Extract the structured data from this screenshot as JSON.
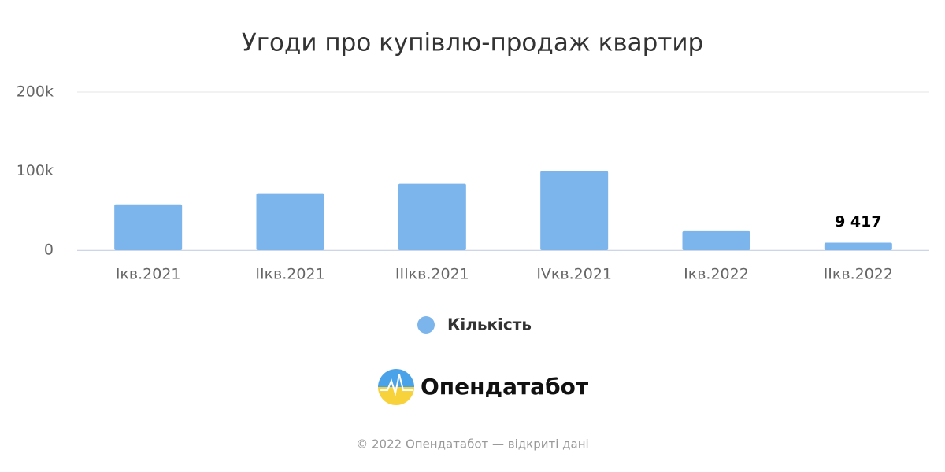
{
  "chart_data": {
    "type": "bar",
    "title": "Угоди про купівлю-продаж квартир",
    "categories": [
      "Iкв.2021",
      "IIкв.2021",
      "IIIкв.2021",
      "IVкв.2021",
      "Iкв.2022",
      "IIкв.2022"
    ],
    "series": [
      {
        "name": "Кількість",
        "color": "#7cb5ec",
        "values": [
          58000,
          72000,
          84000,
          100000,
          24000,
          9417
        ],
        "value_labels": [
          null,
          null,
          null,
          null,
          null,
          "9 417"
        ]
      }
    ],
    "ylim": [
      0,
      200000
    ],
    "yticks": [
      0,
      {
        "value": 100000,
        "label": "100k"
      },
      {
        "value": 200000,
        "label": "200k"
      }
    ],
    "grid": true
  },
  "logo": "Опендатабот",
  "footer": "© 2022 Опендатабот — відкриті дані"
}
